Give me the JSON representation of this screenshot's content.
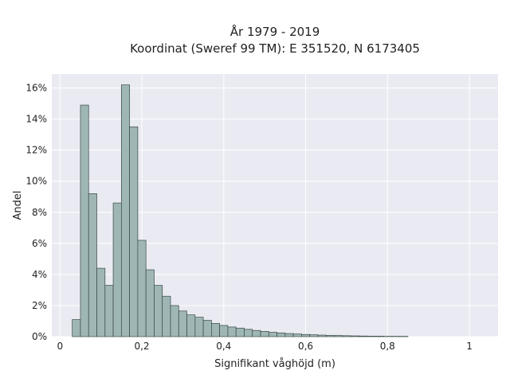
{
  "chart_data": {
    "type": "bar",
    "title_lines": [
      "År 1979 - 2019",
      "Koordinat (Sweref 99 TM): E 351520, N 6173405"
    ],
    "xlabel": "Signifikant våghöjd (m)",
    "ylabel": "Andel",
    "xlim": [
      -0.02,
      1.07
    ],
    "ylim": [
      0,
      16.9
    ],
    "x_ticks": [
      0,
      0.2,
      0.4,
      0.6,
      0.8,
      1
    ],
    "x_tick_labels": [
      "0",
      "0,2",
      "0,4",
      "0,6",
      "0,8",
      "1"
    ],
    "y_ticks": [
      0,
      2,
      4,
      6,
      8,
      10,
      12,
      14,
      16
    ],
    "y_tick_labels": [
      "0%",
      "2%",
      "4%",
      "6%",
      "8%",
      "10%",
      "12%",
      "14%",
      "16%"
    ],
    "bin_start": 0.03,
    "bin_width": 0.02,
    "values": [
      1.1,
      14.9,
      9.2,
      4.4,
      3.3,
      8.6,
      16.2,
      13.5,
      6.2,
      4.3,
      3.3,
      2.6,
      2.0,
      1.65,
      1.4,
      1.25,
      1.05,
      0.85,
      0.72,
      0.62,
      0.55,
      0.47,
      0.4,
      0.34,
      0.28,
      0.24,
      0.2,
      0.17,
      0.14,
      0.12,
      0.1,
      0.08,
      0.07,
      0.06,
      0.05,
      0.04,
      0.03,
      0.03,
      0.02,
      0.02,
      0.02
    ],
    "grid": true,
    "bar_color": "#9fb6b6",
    "bar_edge_color": "#3a4848",
    "plot_background": "#eaeaf2"
  }
}
